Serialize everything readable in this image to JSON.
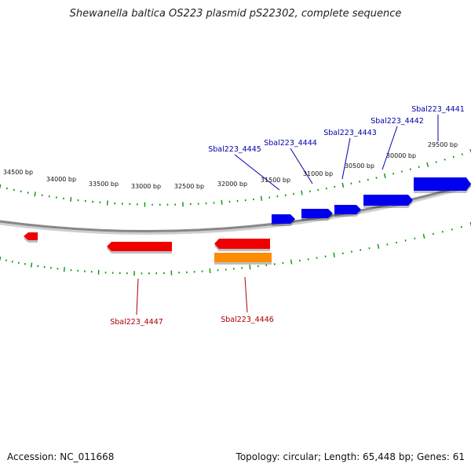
{
  "title": "Shewanella baltica OS223 plasmid pS22302, complete sequence",
  "footer": {
    "accession": "Accession: NC_011668",
    "summary": "Topology: circular; Length: 65,448 bp; Genes: 61"
  },
  "colors": {
    "forward_gene": "#0000ee",
    "reverse_gene": "#ee0000",
    "other_feature": "#ff8c00",
    "backbone": "#888888",
    "ticks": "#009900",
    "forward_label": "#0000aa",
    "reverse_label": "#aa0000"
  },
  "upper_ruler_labels": [
    "29500 bp",
    "30000 bp",
    "30500 bp",
    "31000 bp",
    "31500 bp",
    "32000 bp",
    "32500 bp",
    "33000 bp",
    "33500 bp",
    "34000 bp",
    "34500 bp"
  ],
  "forward_genes": [
    "Sbal223_4441",
    "Sbal223_4442",
    "Sbal223_4443",
    "Sbal223_4444",
    "Sbal223_4445"
  ],
  "reverse_genes": [
    "Sbal223_4446",
    "Sbal223_4447"
  ]
}
